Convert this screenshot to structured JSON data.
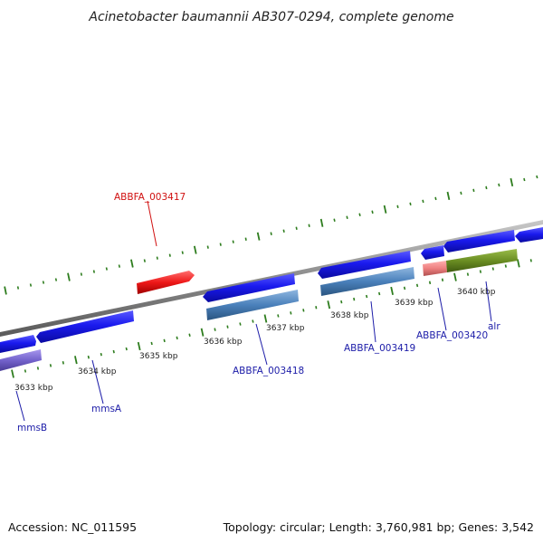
{
  "title": "Acinetobacter baumannii AB307-0294, complete genome",
  "footer": {
    "accession": "Accession: NC_011595",
    "summary": "Topology: circular; Length: 3,760,981 bp; Genes: 3,542"
  },
  "colors": {
    "backbone": "#8a8a8a",
    "tick": "#2e7d1e",
    "cds_blue": "#1414e6",
    "steelblue": "#4f86bf",
    "red": "#e81c1c",
    "pink": "#ee8080",
    "olive": "#6b8e23",
    "purple": "#7a6ad0",
    "label_blue": "#1c1ca8",
    "label_red": "#d01010"
  },
  "ticks": [
    {
      "label": "3633 kbp"
    },
    {
      "label": "3634 kbp"
    },
    {
      "label": "3635 kbp"
    },
    {
      "label": "3636 kbp"
    },
    {
      "label": "3637 kbp"
    },
    {
      "label": "3638 kbp"
    },
    {
      "label": "3639 kbp"
    },
    {
      "label": "3640 kbp"
    }
  ],
  "gene_labels": [
    {
      "name": "ABBFA_003417",
      "color": "red"
    },
    {
      "name": "ABBFA_003418",
      "color": "blue"
    },
    {
      "name": "ABBFA_003419",
      "color": "blue"
    },
    {
      "name": "ABBFA_003420",
      "color": "blue"
    },
    {
      "name": "alr",
      "color": "blue"
    },
    {
      "name": "mmsA",
      "color": "blue"
    },
    {
      "name": "mmsB",
      "color": "blue"
    }
  ]
}
